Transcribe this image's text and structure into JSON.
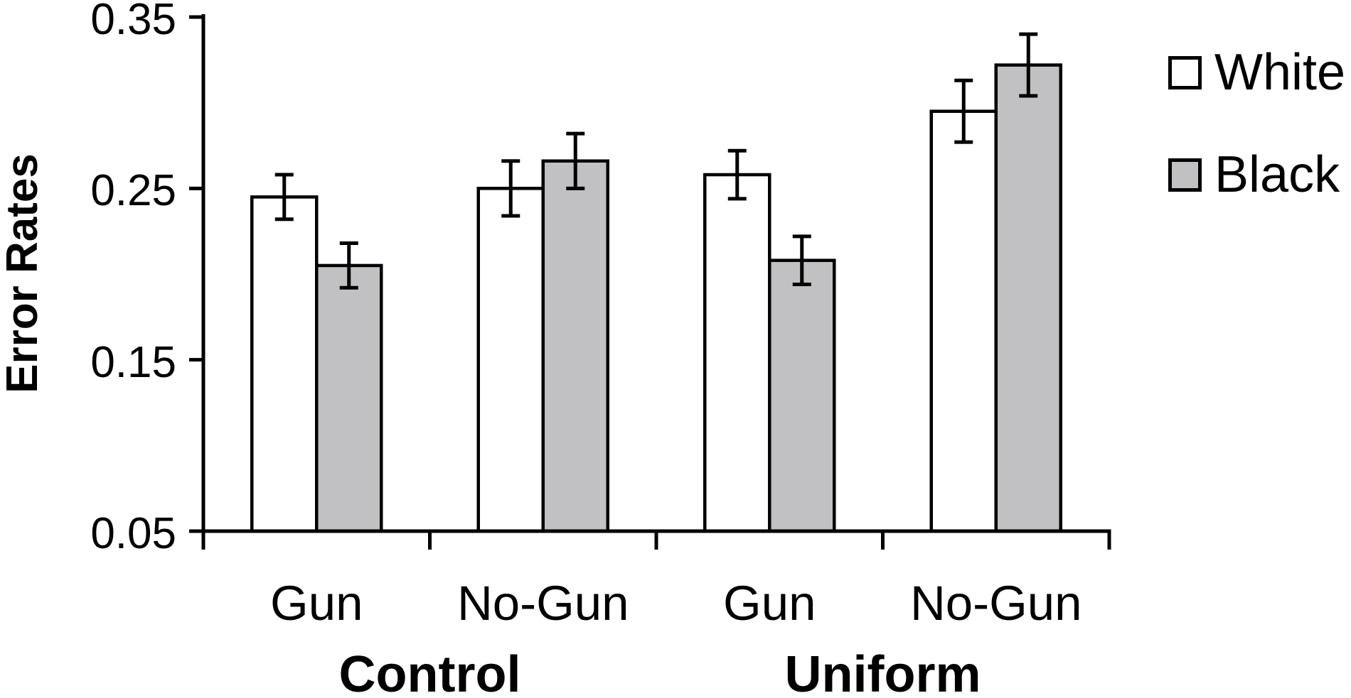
{
  "chart_data": {
    "type": "bar",
    "title": "",
    "ylabel": "Error Rates",
    "xlabel": "",
    "ylim": [
      0.05,
      0.35
    ],
    "ytick_values": [
      0.05,
      0.15,
      0.25,
      0.35
    ],
    "ytick_labels": [
      "0.05",
      "0.15",
      "0.25",
      "0.35"
    ],
    "grid": false,
    "legend_position": "top-right",
    "categories": [
      "Gun",
      "No-Gun",
      "Gun",
      "No-Gun"
    ],
    "condition_labels": [
      "Control",
      "Uniform"
    ],
    "series": [
      {
        "name": "White",
        "fill": "#ffffff",
        "values": [
          0.245,
          0.25,
          0.258,
          0.295
        ],
        "errors": [
          0.013,
          0.016,
          0.014,
          0.018
        ]
      },
      {
        "name": "Black",
        "fill": "#c1c1c3",
        "values": [
          0.205,
          0.266,
          0.208,
          0.322
        ],
        "errors": [
          0.013,
          0.016,
          0.014,
          0.018
        ]
      }
    ],
    "outline_color": "#000000",
    "text_color": "#000000",
    "background_color": "#ffffff"
  }
}
